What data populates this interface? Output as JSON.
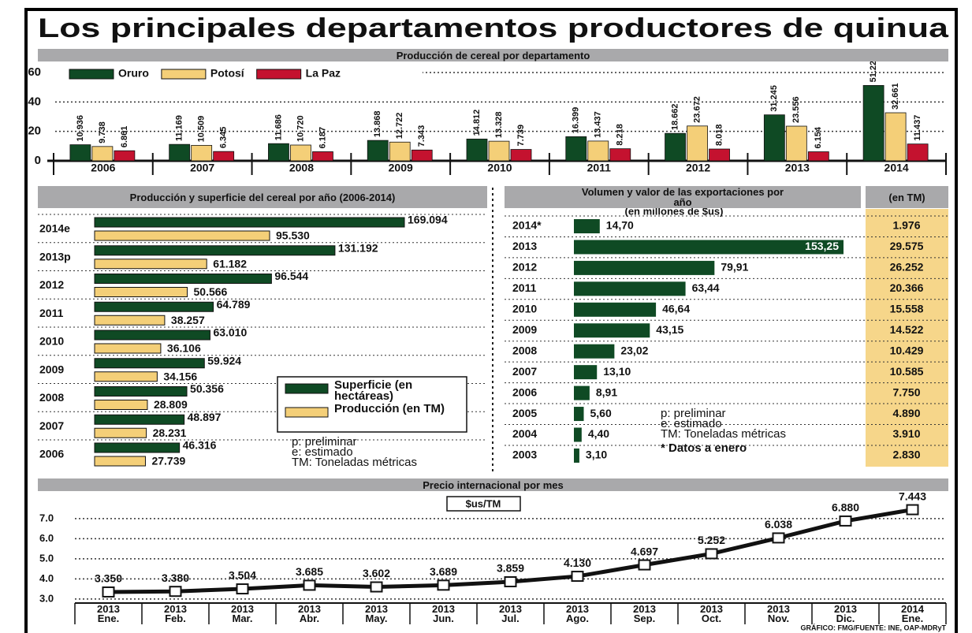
{
  "title": "Los principales departamentos productores de quinua",
  "source": "GRÁFICO: FMG/FUENTE: INE, OAP-MDRyT",
  "chart_data": [
    {
      "type": "bar",
      "title": "Producción de cereal por departamento",
      "categories": [
        "2006",
        "2007",
        "2008",
        "2009",
        "2010",
        "2011",
        "2012",
        "2013",
        "2014"
      ],
      "series": [
        {
          "name": "Oruro",
          "color": "#0f4a24",
          "values": [
            10.936,
            11.169,
            11.686,
            13.868,
            14.812,
            16.399,
            18.662,
            31.245,
            51.22
          ],
          "value_labels": [
            "10.936",
            "11.169",
            "11.686",
            "13.868",
            "14.812",
            "16.399",
            "18.662",
            "31.245",
            "51.220"
          ]
        },
        {
          "name": "Potosí",
          "color": "#f4cf78",
          "values": [
            9.738,
            10.509,
            10.72,
            12.722,
            13.328,
            13.437,
            23.672,
            23.556,
            32.661
          ],
          "value_labels": [
            "9.738",
            "10.509",
            "10.720",
            "12.722",
            "13.328",
            "13.437",
            "23.672",
            "23.556",
            "32.661"
          ]
        },
        {
          "name": "La Paz",
          "color": "#c4122f",
          "values": [
            6.861,
            6.345,
            6.187,
            7.343,
            7.739,
            8.218,
            8.018,
            6.154,
            11.437
          ],
          "value_labels": [
            "6.861",
            "6.345",
            "6.187",
            "7.343",
            "7.739",
            "8.218",
            "8.018",
            "6.154",
            "11.437"
          ]
        }
      ],
      "ylim": [
        0,
        60
      ],
      "yticks": [
        0,
        20,
        40,
        60
      ],
      "grid": true
    },
    {
      "type": "hbar",
      "title": "Producción y superficie del cereal por año (2006-2014)",
      "categories": [
        "2014e",
        "2013p",
        "2012",
        "2011",
        "2010",
        "2009",
        "2008",
        "2007",
        "2006"
      ],
      "series": [
        {
          "name": "Superficie (en hectáreas)",
          "color": "#0f4a24",
          "values": [
            169094,
            131192,
            96544,
            64789,
            63010,
            59924,
            50356,
            48897,
            46316
          ],
          "value_labels": [
            "169.094",
            "131.192",
            "96.544",
            "64.789",
            "63.010",
            "59.924",
            "50.356",
            "48.897",
            "46.316"
          ]
        },
        {
          "name": "Producción (en TM)",
          "color": "#f4cf78",
          "values": [
            95530,
            61182,
            50566,
            38257,
            36106,
            34156,
            28809,
            28231,
            27739
          ],
          "value_labels": [
            "95.530",
            "61.182",
            "50.566",
            "38.257",
            "36.106",
            "34.156",
            "28.809",
            "28.231",
            "27.739"
          ]
        }
      ],
      "notes": [
        "p: preliminar",
        "e: estimado",
        "TM: Toneladas métricas"
      ]
    },
    {
      "type": "hbar",
      "title": "Volumen y valor de las exportaciones por año",
      "subtitle": "(en millones de $us)",
      "categories": [
        "2014*",
        "2013",
        "2012",
        "2011",
        "2010",
        "2009",
        "2008",
        "2007",
        "2006",
        "2005",
        "2004",
        "2003"
      ],
      "values": [
        14.7,
        153.25,
        79.91,
        63.44,
        46.64,
        43.15,
        23.02,
        13.1,
        8.91,
        5.6,
        4.4,
        3.1
      ],
      "value_labels": [
        "14,70",
        "153,25",
        "79,91",
        "63,44",
        "46,64",
        "43,15",
        "23,02",
        "13,10",
        "8,91",
        "5,60",
        "4,40",
        "3,10"
      ],
      "color": "#0f4a24",
      "table_header": "(en TM)",
      "table_values": [
        "1.976",
        "29.575",
        "26.252",
        "20.366",
        "15.558",
        "14.522",
        "10.429",
        "10.585",
        "7.750",
        "4.890",
        "3.910",
        "2.830"
      ],
      "notes": [
        "p: preliminar",
        "e: estimado",
        "TM: Toneladas métricas",
        "* Datos a enero"
      ]
    },
    {
      "type": "line",
      "title": "Precio internacional por mes",
      "ylabel": "$us/TM",
      "categories": [
        "2013 Ene.",
        "2013 Feb.",
        "2013 Mar.",
        "2013 Abr.",
        "2013 May.",
        "2013 Jun.",
        "2013 Jul.",
        "2013 Ago.",
        "2013 Sep.",
        "2013 Oct.",
        "2013 Nov.",
        "2013 Dic.",
        "2014 Ene."
      ],
      "values": [
        3.35,
        3.38,
        3.504,
        3.685,
        3.602,
        3.689,
        3.859,
        4.13,
        4.697,
        5.252,
        6.038,
        6.88,
        7.443
      ],
      "value_labels": [
        "3.350",
        "3.380",
        "3.504",
        "3.685",
        "3.602",
        "3.689",
        "3.859",
        "4.130",
        "4.697",
        "5.252",
        "6.038",
        "6.880",
        "7.443"
      ],
      "color": "#111111",
      "ylim": [
        2.8,
        7.7
      ],
      "yticks": [
        {
          "value": 3,
          "label": "3.0"
        },
        {
          "value": 4,
          "label": "4.0"
        },
        {
          "value": 5,
          "label": "5.0"
        },
        {
          "value": 6,
          "label": "6.0"
        },
        {
          "value": 7,
          "label": "7.0"
        }
      ],
      "grid": true
    }
  ]
}
